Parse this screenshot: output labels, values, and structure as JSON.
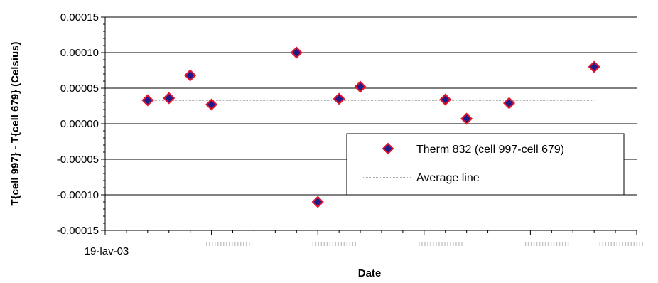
{
  "chart_data": {
    "type": "scatter",
    "xlabel": "Date",
    "ylabel": "T{cell 997} - T{cell 679} (Celsius)",
    "ylim": [
      -0.00015,
      0.00015
    ],
    "y_ticks": [
      "0.00015",
      "0.00010",
      "0.00005",
      "0.00000",
      "-0.00005",
      "-0.00010",
      "-0.00015"
    ],
    "y_tick_values": [
      0.00015,
      0.0001,
      5e-05,
      0,
      -5e-05,
      -0.0001,
      -0.00015
    ],
    "x_first_tick_label": "19-lav-03",
    "grid": true,
    "legend_position": "lower-right",
    "series": [
      {
        "name": "Therm 832 (cell 997-cell 679)",
        "marker": "diamond",
        "marker_fill": "#1c1c8c",
        "marker_edge": "#e3142b",
        "x": [
          0.4,
          0.6,
          0.8,
          1.0,
          1.8,
          2.0,
          2.2,
          2.4,
          3.2,
          3.4,
          3.8,
          4.6
        ],
        "y": [
          3.3e-05,
          3.6e-05,
          6.8e-05,
          2.7e-05,
          0.0001,
          -0.00011,
          3.5e-05,
          5.2e-05,
          3.4e-05,
          7e-06,
          2.9e-05,
          8e-05
        ]
      },
      {
        "name": "Average line",
        "style": "dotted",
        "color": "#555555",
        "value": 3.3e-05,
        "x_range": [
          0.4,
          4.6
        ]
      }
    ]
  }
}
